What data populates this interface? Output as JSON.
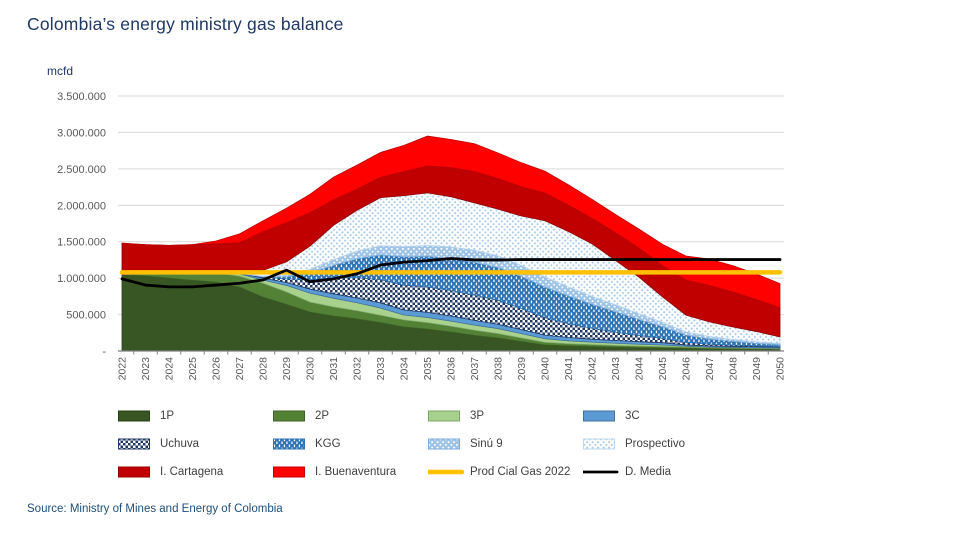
{
  "title": "Colombia’s energy ministry gas balance",
  "source_note": "Source:  Ministry of Mines and Energy  of Colombia",
  "chart_data": {
    "type": "area",
    "stacking": "stacked",
    "title": "Colombia’s energy ministry gas balance",
    "ylabel": "mcfd",
    "xlabel": "",
    "ylim": [
      0,
      3500000
    ],
    "y_tick_interval": 500000,
    "y_tick_labels_bottom_to_top": [
      "-",
      "500.000",
      "1.000.000",
      "1.500.000",
      "2.000.000",
      "2.500.000",
      "3.000.000",
      "3.500.000"
    ],
    "grid": true,
    "legend_position": "bottom",
    "x_label_rotation": -90,
    "x": [
      2022,
      2023,
      2024,
      2025,
      2026,
      2027,
      2028,
      2029,
      2030,
      2031,
      2032,
      2033,
      2034,
      2035,
      2036,
      2037,
      2038,
      2039,
      2040,
      2041,
      2042,
      2043,
      2044,
      2045,
      2046,
      2047,
      2048,
      2049,
      2050
    ],
    "series": [
      {
        "name": "1P",
        "role": "area",
        "color": "#375623",
        "border": "#2A421A",
        "pattern": "solid",
        "values": [
          1050000,
          1030000,
          1000000,
          970000,
          945000,
          877000,
          740000,
          640000,
          534000,
          480000,
          440000,
          390000,
          330000,
          300000,
          260000,
          215000,
          178000,
          130000,
          82000,
          70000,
          60000,
          52000,
          45000,
          40000,
          35000,
          30000,
          28000,
          25000,
          22000
        ]
      },
      {
        "name": "2P",
        "role": "area",
        "color": "#538135",
        "border": "#3E6127",
        "pattern": "solid",
        "values": [
          0,
          30000,
          70000,
          110000,
          130000,
          150000,
          190000,
          170000,
          137000,
          125000,
          112000,
          100000,
          96000,
          90000,
          80000,
          70000,
          60000,
          48000,
          36000,
          30000,
          27000,
          24000,
          22000,
          20000,
          18000,
          14000,
          12000,
          10000,
          8000
        ]
      },
      {
        "name": "3P",
        "role": "area",
        "color": "#A9D18E",
        "border": "#7FA968",
        "pattern": "solid",
        "values": [
          0,
          0,
          0,
          10000,
          20000,
          30000,
          45000,
          90000,
          124000,
          120000,
          110000,
          100000,
          68000,
          70000,
          70000,
          70000,
          69000,
          60000,
          50000,
          40000,
          35000,
          30000,
          26000,
          22000,
          12000,
          10000,
          9000,
          8000,
          8000
        ]
      },
      {
        "name": "3C",
        "role": "area",
        "color": "#5B9BD5",
        "border": "#41719C",
        "pattern": "solid",
        "values": [
          0,
          0,
          0,
          0,
          0,
          10000,
          27000,
          40000,
          55000,
          60000,
          65000,
          70000,
          69000,
          70000,
          70000,
          65000,
          60000,
          55000,
          50000,
          45000,
          40000,
          38000,
          35000,
          32000,
          18000,
          16000,
          15000,
          15000,
          15000
        ]
      },
      {
        "name": "Uchuva",
        "role": "area",
        "color": "#1F3864",
        "border": "#1F3864",
        "pattern": "checker-navy",
        "values": [
          0,
          0,
          0,
          0,
          0,
          0,
          15000,
          50000,
          130000,
          220000,
          280000,
          320000,
          340000,
          350000,
          350000,
          347000,
          330000,
          290000,
          240000,
          190000,
          150000,
          115000,
          85000,
          60000,
          35000,
          25000,
          18000,
          12000,
          8000
        ]
      },
      {
        "name": "KGG",
        "role": "area",
        "color": "#2E74B5",
        "border": "#2E74B5",
        "pattern": "dash-blue",
        "values": [
          0,
          0,
          0,
          0,
          0,
          0,
          0,
          30000,
          90000,
          170000,
          260000,
          340000,
          390000,
          420000,
          440000,
          452000,
          450000,
          440000,
          420000,
          380000,
          330000,
          280000,
          220000,
          160000,
          100000,
          70000,
          50000,
          35000,
          25000
        ]
      },
      {
        "name": "Sinú 9",
        "role": "area",
        "color": "#9DC3E6",
        "border": "#7FAEDC",
        "pattern": "dot-mediumblue",
        "values": [
          0,
          0,
          0,
          0,
          0,
          0,
          10000,
          25000,
          50000,
          80000,
          105000,
          125000,
          140000,
          150000,
          158000,
          165000,
          160000,
          150000,
          140000,
          125000,
          110000,
          95000,
          80000,
          60000,
          45000,
          35000,
          28000,
          22000,
          18000
        ]
      },
      {
        "name": "Prospectivo",
        "role": "area",
        "color": "#BDD7EE",
        "border": "#BDD7EE",
        "pattern": "dot-paleblue",
        "values": [
          0,
          0,
          0,
          0,
          0,
          20000,
          80000,
          180000,
          320000,
          470000,
          560000,
          660000,
          700000,
          720000,
          690000,
          650000,
          640000,
          680000,
          770000,
          760000,
          720000,
          610000,
          500000,
          350000,
          230000,
          200000,
          170000,
          140000,
          90000
        ]
      },
      {
        "name": "I. Cartagena",
        "role": "area",
        "color": "#C00000",
        "border": "#8F0000",
        "pattern": "solid",
        "values": [
          430000,
          400000,
          380000,
          370000,
          375000,
          400000,
          530000,
          535000,
          460000,
          350000,
          290000,
          280000,
          330000,
          370000,
          400000,
          430000,
          420000,
          400000,
          380000,
          360000,
          350000,
          380000,
          400000,
          430000,
          480000,
          500000,
          480000,
          440000,
          400000
        ]
      },
      {
        "name": "I. Buenaventura",
        "role": "area",
        "color": "#FF0000",
        "border": "#C00000",
        "pattern": "solid",
        "values": [
          0,
          0,
          0,
          0,
          40000,
          120000,
          150000,
          200000,
          250000,
          310000,
          330000,
          340000,
          360000,
          410000,
          385000,
          380000,
          350000,
          330000,
          300000,
          280000,
          260000,
          250000,
          260000,
          290000,
          330000,
          360000,
          360000,
          350000,
          330000
        ]
      },
      {
        "name": "Prod Cial  Gas 2022",
        "role": "line",
        "color": "#FFC000",
        "width": 4.5,
        "values": [
          1080000,
          1080000,
          1080000,
          1080000,
          1080000,
          1080000,
          1080000,
          1080000,
          1080000,
          1080000,
          1080000,
          1080000,
          1080000,
          1080000,
          1080000,
          1080000,
          1080000,
          1080000,
          1080000,
          1080000,
          1080000,
          1080000,
          1080000,
          1080000,
          1080000,
          1080000,
          1080000,
          1080000,
          1080000
        ]
      },
      {
        "name": "D. Media",
        "role": "line",
        "color": "#000000",
        "width": 2.8,
        "values": [
          990000,
          905000,
          880000,
          880000,
          905000,
          930000,
          975000,
          1110000,
          950000,
          990000,
          1060000,
          1180000,
          1220000,
          1240000,
          1270000,
          1250000,
          1250000,
          1255000,
          1255000,
          1255000,
          1255000,
          1255000,
          1255000,
          1255000,
          1255000,
          1255000,
          1255000,
          1255000,
          1255000
        ]
      }
    ]
  }
}
